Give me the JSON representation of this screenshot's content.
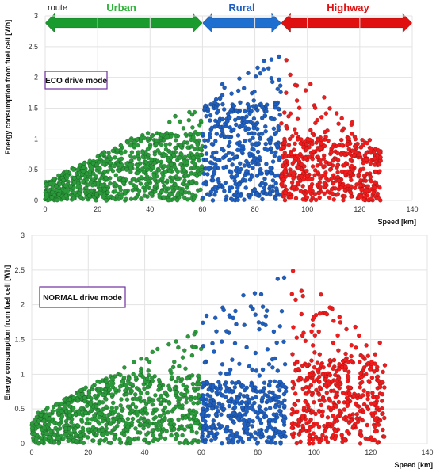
{
  "header": {
    "route_label": "route",
    "segments": [
      {
        "name": "Urban",
        "color": "#1a9b2e",
        "label_color": "#2fb43a",
        "x_range": [
          0,
          60
        ]
      },
      {
        "name": "Rural",
        "color": "#1e6fd0",
        "label_color": "#1f5fbf",
        "x_range": [
          60,
          90
        ]
      },
      {
        "name": "Highway",
        "color": "#e01010",
        "label_color": "#e01010",
        "x_range": [
          90,
          140
        ]
      }
    ]
  },
  "chart_data": [
    {
      "type": "scatter",
      "panel_label": "ECO drive mode",
      "xlabel": "Speed [km]",
      "ylabel": "Energy consumption from fuel cell [Wh]",
      "xlim": [
        0,
        140
      ],
      "ylim": [
        0,
        3
      ],
      "xticks": [
        0,
        20,
        40,
        60,
        80,
        100,
        120,
        140
      ],
      "yticks": [
        0,
        0.5,
        1,
        1.5,
        2,
        2.5,
        3
      ],
      "grid": true,
      "series": [
        {
          "segment": "Urban",
          "color": "#2a9a3a",
          "x_range": [
            0,
            60
          ],
          "envelope_max_at_start": 0.3,
          "envelope_max_at_end": 1.6,
          "dense_upper": 1.1
        },
        {
          "segment": "Rural",
          "color": "#1f5fbf",
          "x_range": [
            60,
            90
          ],
          "envelope_max_at_start": 1.7,
          "envelope_max_at_end": 2.45,
          "dense_upper": 1.6
        },
        {
          "segment": "Highway",
          "color": "#ee1c1c",
          "x_range": [
            90,
            128
          ],
          "envelope_max_at_start": 2.45,
          "envelope_max_at_end": 0.8,
          "dense_upper": 1.0
        }
      ]
    },
    {
      "type": "scatter",
      "panel_label": "NORMAL drive mode",
      "xlabel": "Speed [km]",
      "ylabel": "Energy consumption from fuel cell [Wh]",
      "xlim": [
        0,
        140
      ],
      "ylim": [
        0,
        3
      ],
      "xticks": [
        0,
        20,
        40,
        60,
        80,
        100,
        120,
        140
      ],
      "yticks": [
        0,
        0.5,
        1,
        1.5,
        2,
        2.5,
        3
      ],
      "grid": true,
      "series": [
        {
          "segment": "Urban",
          "color": "#2a9a3a",
          "x_range": [
            0,
            60
          ],
          "envelope_max_at_start": 0.4,
          "envelope_max_at_end": 1.7,
          "dense_upper": 1.0
        },
        {
          "segment": "Rural",
          "color": "#1f5fbf",
          "x_range": [
            60,
            90
          ],
          "envelope_max_at_start": 1.8,
          "envelope_max_at_end": 2.5,
          "dense_upper": 0.9
        },
        {
          "segment": "Highway",
          "color": "#ee1c1c",
          "x_range": [
            92,
            125
          ],
          "envelope_max_at_start": 2.6,
          "envelope_max_at_end": 1.4,
          "dense_upper": 1.2
        }
      ]
    }
  ]
}
